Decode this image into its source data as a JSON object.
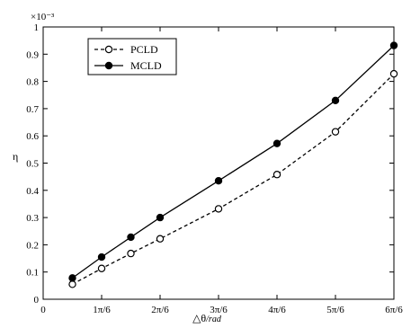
{
  "chart_data": {
    "type": "line",
    "title": "",
    "xlabel_main": "△θ",
    "xlabel_unit": "/rad",
    "ylabel": "η",
    "y_exponent": "×10⁻³",
    "xlim": [
      0,
      6
    ],
    "ylim": [
      0,
      1
    ],
    "x_ticks": [
      0,
      1,
      2,
      3,
      4,
      5,
      6
    ],
    "x_tick_labels": [
      "0",
      "1π/6",
      "2π/6",
      "3π/6",
      "4π/6",
      "5π/6",
      "6π/6"
    ],
    "y_ticks": [
      0,
      0.1,
      0.2,
      0.3,
      0.4,
      0.5,
      0.6,
      0.7,
      0.8,
      0.9,
      1
    ],
    "y_tick_labels": [
      "0",
      "0.1",
      "0.2",
      "0.3",
      "0.4",
      "0.5",
      "0.6",
      "0.7",
      "0.8",
      "0.9",
      "1"
    ],
    "x_values_note": "x in units of π/6 rad",
    "x": [
      0.5,
      1,
      1.5,
      2,
      3,
      4,
      5,
      6
    ],
    "series": [
      {
        "name": "PCLD",
        "style": "dashed",
        "marker": "open-circle",
        "values": [
          0.055,
          0.113,
          0.168,
          0.222,
          0.332,
          0.458,
          0.615,
          0.828
        ]
      },
      {
        "name": "MCLD",
        "style": "solid",
        "marker": "filled-circle",
        "values": [
          0.078,
          0.155,
          0.228,
          0.3,
          0.435,
          0.572,
          0.73,
          0.932
        ]
      }
    ],
    "grid": false,
    "legend_position": "top-left"
  }
}
